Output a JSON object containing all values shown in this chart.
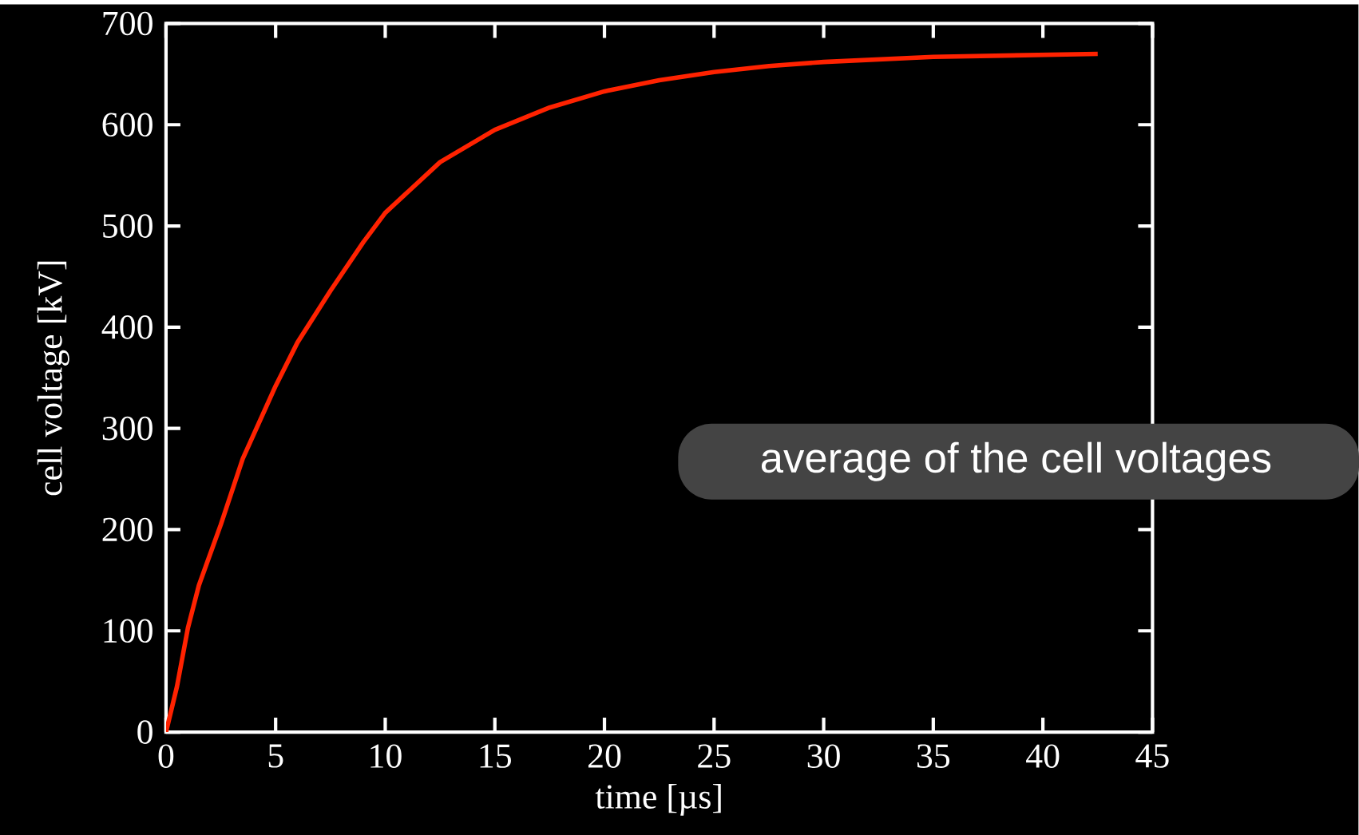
{
  "chart_data": {
    "type": "line",
    "xlabel": "time [µs]",
    "ylabel": "cell voltage [kV]",
    "x": [
      0,
      0.5,
      1,
      1.5,
      2.5,
      3.5,
      5,
      6,
      7.5,
      9,
      10,
      12.5,
      15,
      17.5,
      20,
      22.5,
      25,
      27.5,
      30,
      35,
      40,
      42.5
    ],
    "series": [
      {
        "color": "#ff2200",
        "values": [
          0,
          45,
          103,
          145,
          205,
          270,
          342,
          385,
          436,
          484,
          513,
          563,
          595,
          617,
          633,
          644,
          652,
          658,
          662,
          667,
          669,
          670
        ]
      }
    ],
    "xlim": [
      0,
      45
    ],
    "xticks": [
      0,
      5,
      10,
      15,
      20,
      25,
      30,
      35,
      40,
      45
    ],
    "ylim": [
      0,
      700
    ],
    "yticks": [
      0,
      100,
      200,
      300,
      400,
      500,
      600,
      700
    ],
    "annotations": [
      "average of the cell voltages"
    ],
    "legend": false,
    "grid": false,
    "marker": "none",
    "line_style": "solid"
  }
}
